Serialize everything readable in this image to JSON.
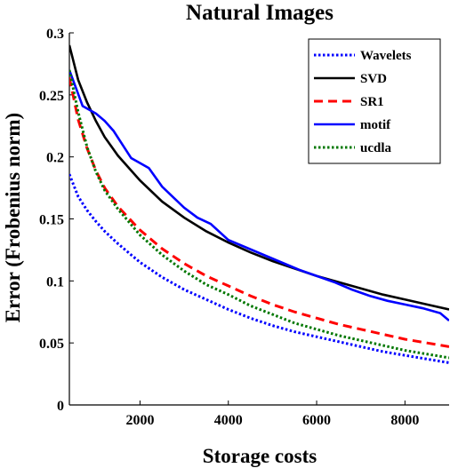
{
  "chart_data": {
    "type": "line",
    "title": "Natural Images",
    "xlabel": "Storage costs",
    "ylabel": "Error (Frobenius norm)",
    "xlim": [
      400,
      9000
    ],
    "ylim": [
      0,
      0.3
    ],
    "x_ticks": [
      2000,
      4000,
      6000,
      8000
    ],
    "x_tick_labels": [
      "2000",
      "4000",
      "6000",
      "8000"
    ],
    "y_ticks": [
      0,
      0.05,
      0.1,
      0.15,
      0.2,
      0.25,
      0.3
    ],
    "y_tick_labels": [
      "0",
      "0.05",
      "0.1",
      "0.15",
      "0.2",
      "0.25",
      "0.3"
    ],
    "grid": false,
    "legend_position": "top-right",
    "series": [
      {
        "name": "Wavelets",
        "color": "#0000ff",
        "style": "dotted",
        "x": [
          400,
          600,
          800,
          1000,
          1200,
          1500,
          2000,
          2500,
          3000,
          3500,
          4000,
          4500,
          5000,
          5500,
          6000,
          6500,
          7000,
          7500,
          8000,
          8500,
          9000
        ],
        "y": [
          0.186,
          0.168,
          0.157,
          0.148,
          0.14,
          0.13,
          0.115,
          0.103,
          0.093,
          0.085,
          0.077,
          0.07,
          0.064,
          0.059,
          0.055,
          0.051,
          0.047,
          0.043,
          0.04,
          0.037,
          0.034
        ]
      },
      {
        "name": "SVD",
        "color": "#000000",
        "style": "solid",
        "x": [
          400,
          600,
          800,
          1000,
          1200,
          1500,
          2000,
          2500,
          3000,
          3500,
          4000,
          4500,
          5000,
          5500,
          6000,
          6500,
          7000,
          7500,
          8000,
          8500,
          9000
        ],
        "y": [
          0.29,
          0.262,
          0.244,
          0.229,
          0.216,
          0.201,
          0.181,
          0.164,
          0.151,
          0.14,
          0.131,
          0.123,
          0.116,
          0.11,
          0.104,
          0.099,
          0.094,
          0.089,
          0.085,
          0.081,
          0.077
        ]
      },
      {
        "name": "SR1",
        "color": "#ff0000",
        "style": "dashed",
        "x": [
          400,
          600,
          800,
          1000,
          1200,
          1500,
          2000,
          2500,
          3000,
          3500,
          4000,
          4500,
          5000,
          5500,
          6000,
          6500,
          7000,
          7500,
          8000,
          8500,
          9000
        ],
        "y": [
          0.264,
          0.23,
          0.207,
          0.189,
          0.175,
          0.16,
          0.141,
          0.126,
          0.114,
          0.104,
          0.096,
          0.088,
          0.081,
          0.075,
          0.07,
          0.065,
          0.061,
          0.057,
          0.053,
          0.05,
          0.047
        ]
      },
      {
        "name": "motif",
        "color": "#0000ff",
        "style": "solid",
        "x": [
          400,
          700,
          1000,
          1200,
          1400,
          1600,
          1800,
          2000,
          2200,
          2500,
          3000,
          3300,
          3600,
          4000,
          4400,
          4800,
          5200,
          5600,
          6000,
          6400,
          6800,
          7200,
          7600,
          8000,
          8400,
          8800,
          9000
        ],
        "y": [
          0.27,
          0.241,
          0.235,
          0.229,
          0.221,
          0.21,
          0.199,
          0.195,
          0.191,
          0.176,
          0.159,
          0.151,
          0.146,
          0.133,
          0.127,
          0.121,
          0.115,
          0.109,
          0.104,
          0.099,
          0.093,
          0.088,
          0.084,
          0.081,
          0.078,
          0.074,
          0.068
        ]
      },
      {
        "name": "ucdla",
        "color": "#007700",
        "style": "dotted",
        "x": [
          400,
          600,
          800,
          1000,
          1200,
          1500,
          2000,
          2500,
          3000,
          3500,
          4000,
          4500,
          5000,
          5500,
          6000,
          6500,
          7000,
          7500,
          8000,
          8500,
          9000
        ],
        "y": [
          0.27,
          0.236,
          0.208,
          0.188,
          0.173,
          0.158,
          0.137,
          0.121,
          0.108,
          0.097,
          0.089,
          0.08,
          0.073,
          0.066,
          0.061,
          0.056,
          0.052,
          0.048,
          0.044,
          0.041,
          0.038
        ]
      }
    ]
  }
}
